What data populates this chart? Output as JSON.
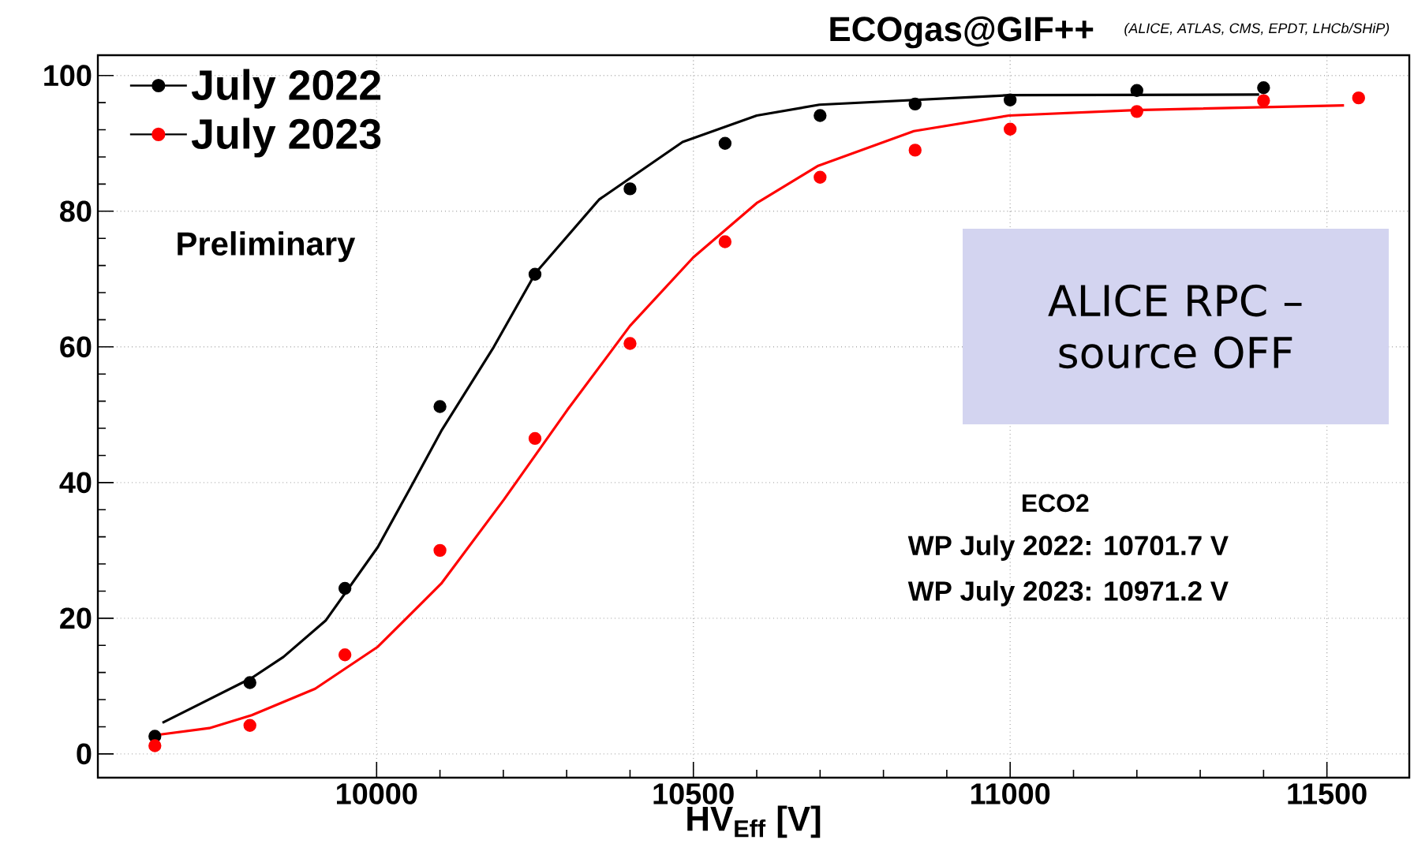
{
  "chart_data": {
    "type": "scatter",
    "title": "ECOgas@GIF++",
    "subtitle": "(ALICE, ATLAS, CMS, EPDT, LHCb/SHiP)",
    "xlabel": "HV$_{Eff}$ [V]",
    "annotations": [
      "Preliminary",
      "ALICE RPC – source OFF",
      "ECO2",
      "WP July 2022: 10701.7 V",
      "WP July 2023: 10971.2 V"
    ],
    "xlim": [
      9560,
      11630
    ],
    "ylim": [
      -3.5,
      103
    ],
    "xticks": [
      10000,
      10500,
      11000,
      11500
    ],
    "yticks": [
      0,
      20,
      40,
      60,
      80,
      100
    ],
    "grid": true,
    "legend": "top left",
    "marker": "circle",
    "series": [
      {
        "name": "July 2022",
        "color": "#000000",
        "x": [
          9650,
          9800,
          9950,
          10100,
          10250,
          10400,
          10550,
          10700,
          10850,
          11000,
          11200,
          11400
        ],
        "values": [
          2.6,
          10.5,
          24.4,
          51.2,
          70.7,
          83.3,
          90.0,
          94.1,
          95.8,
          96.4,
          97.8,
          98.2
        ]
      },
      {
        "name": "July 2023",
        "color": "#ff0000",
        "x": [
          9650,
          9800,
          9950,
          10100,
          10250,
          10400,
          10550,
          10700,
          10850,
          11000,
          11200,
          11400,
          11550
        ],
        "values": [
          1.2,
          4.2,
          14.6,
          30.0,
          46.5,
          60.5,
          75.5,
          85.0,
          89.0,
          92.1,
          94.7,
          96.3,
          96.7
        ]
      },
      {
        "type": "line",
        "marker": "none",
        "color": "#000000",
        "x": [
          9662,
          9803,
          9853,
          9920,
          10002,
          10052,
          10102,
          10185,
          10251,
          10351,
          10483,
          10600,
          10699,
          10998,
          11393
        ],
        "values": [
          4.6,
          11.2,
          14.3,
          19.7,
          30.5,
          39.0,
          47.6,
          60.0,
          70.9,
          81.7,
          90.2,
          94.1,
          95.7,
          97.1,
          97.2
        ]
      },
      {
        "type": "line",
        "marker": "none",
        "color": "#ff0000",
        "x": [
          9654,
          9736,
          9803,
          9903,
          10002,
          10102,
          10201,
          10301,
          10400,
          10500,
          10600,
          10697,
          10848,
          10998,
          11197,
          11527
        ],
        "values": [
          2.8,
          3.8,
          5.7,
          9.6,
          15.8,
          25.1,
          37.5,
          50.7,
          63.1,
          73.2,
          81.2,
          86.7,
          91.8,
          94.1,
          94.9,
          95.6
        ]
      }
    ]
  }
}
